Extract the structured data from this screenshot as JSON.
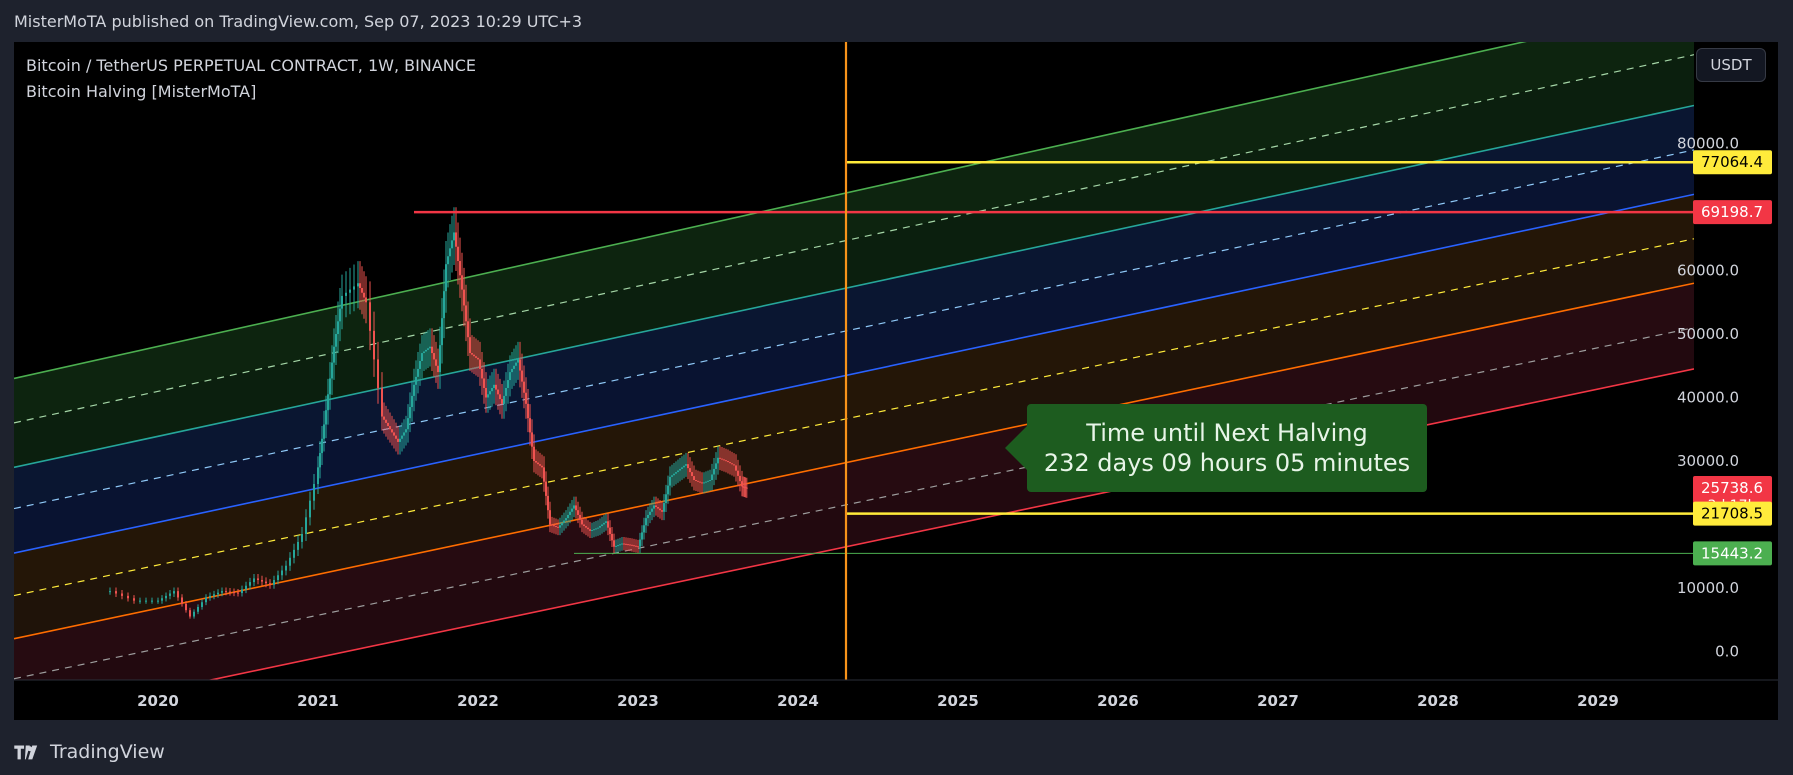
{
  "header": {
    "published_text": "MisterMoTA published on TradingView.com, Sep 07, 2023 10:29 UTC+3"
  },
  "legend": {
    "symbol_line": "Bitcoin / TetherUS PERPETUAL CONTRACT, 1W, BINANCE",
    "indicator_line": "Bitcoin Halving [MisterMoTA]"
  },
  "currency_button": "USDT",
  "callout": {
    "line1": "Time until Next Halving",
    "line2": "232 days 09 hours 05 minutes"
  },
  "footer": {
    "brand": "TradingView"
  },
  "colors": {
    "background": "#000000",
    "candle_up": "#26a69a",
    "candle_down": "#ef5350",
    "halving_line": "#f7931a",
    "target_line": "#ffeb3b",
    "ath_line": "#f23645",
    "callout_bg": "#1d5c1f"
  },
  "chart_data": {
    "type": "candlestick",
    "title": "Bitcoin / TetherUS PERPETUAL CONTRACT, 1W, BINANCE",
    "x_axis": {
      "ticks": [
        "2020",
        "2021",
        "2022",
        "2023",
        "2024",
        "2025",
        "2026",
        "2027",
        "2028",
        "2029"
      ],
      "range": [
        2019.1,
        2029.6
      ]
    },
    "y_axis": {
      "ticks": [
        0.0,
        10000.0,
        20000.0,
        30000.0,
        40000.0,
        50000.0,
        60000.0,
        70000.0,
        80000.0
      ],
      "tick_labels": [
        "0.0",
        "10000.0",
        "30000.0",
        "40000.0",
        "50000.0",
        "60000.0",
        "80000.0"
      ],
      "range": [
        -4500,
        96000
      ]
    },
    "price_tags": [
      {
        "value": 77064.4,
        "label": "77064.4",
        "color": "#ffeb3b",
        "text_color": "#000000"
      },
      {
        "value": 69198.7,
        "label": "69198.7",
        "color": "#f23645",
        "text_color": "#ffffff"
      },
      {
        "value": 25738.6,
        "label": "25738.6",
        "sub": "3d 17h",
        "color": "#f23645",
        "text_color": "#ffffff"
      },
      {
        "value": 21708.5,
        "label": "21708.5",
        "color": "#ffeb3b",
        "text_color": "#000000"
      },
      {
        "value": 15443.2,
        "label": "15443.2",
        "color": "#4caf50",
        "text_color": "#ffffff"
      }
    ],
    "horizontal_lines": [
      {
        "name": "ath",
        "value": 69198.7,
        "from": 2021.6,
        "to": 2029.6,
        "color": "#f23645"
      },
      {
        "name": "upper-target",
        "value": 77064.4,
        "from": 2024.3,
        "to": 2029.6,
        "color": "#ffeb3b"
      },
      {
        "name": "lower-target",
        "value": 21708.5,
        "from": 2024.3,
        "to": 2029.6,
        "color": "#ffeb3b"
      },
      {
        "name": "cycle-low",
        "value": 15443.2,
        "from": 2022.6,
        "to": 2029.6,
        "color": "#4caf50"
      }
    ],
    "vertical_lines": [
      {
        "name": "next-halving",
        "x": 2024.3,
        "color": "#f7931a"
      }
    ],
    "channel_lines": [
      {
        "name": "green-top",
        "y_start": 43000,
        "y_end": 102000,
        "color": "#4caf50",
        "dash": false
      },
      {
        "name": "green-mid",
        "y_start": 36000,
        "y_end": 94000,
        "color": "#a5d6a7",
        "dash": true
      },
      {
        "name": "teal",
        "y_start": 29000,
        "y_end": 86000,
        "color": "#26a69a",
        "dash": false
      },
      {
        "name": "blue-mid",
        "y_start": 22500,
        "y_end": 79000,
        "color": "#90caf9",
        "dash": true
      },
      {
        "name": "blue-orange",
        "y_start": 15500,
        "y_end": 72000,
        "color": "#2962ff",
        "dash": false
      },
      {
        "name": "yellow-mid",
        "y_start": 8800,
        "y_end": 65000,
        "color": "#ffeb3b",
        "dash": true
      },
      {
        "name": "orange",
        "y_start": 2000,
        "y_end": 58000,
        "color": "#ff6d00",
        "dash": false
      },
      {
        "name": "grey-mid",
        "y_start": -4300,
        "y_end": 51000,
        "color": "#9e9e9e",
        "dash": true
      },
      {
        "name": "red-bottom",
        "y_start": -11000,
        "y_end": 44500,
        "color": "#f23645",
        "dash": false
      }
    ],
    "series": [
      {
        "name": "BTCUSDT.P",
        "points": [
          [
            2019.7,
            9500
          ],
          [
            2019.85,
            8000
          ],
          [
            2020.0,
            8000
          ],
          [
            2020.1,
            9500
          ],
          [
            2020.2,
            5500
          ],
          [
            2020.3,
            8500
          ],
          [
            2020.4,
            9500
          ],
          [
            2020.5,
            9200
          ],
          [
            2020.6,
            11500
          ],
          [
            2020.7,
            10500
          ],
          [
            2020.8,
            13500
          ],
          [
            2020.9,
            18500
          ],
          [
            2021.0,
            29000
          ],
          [
            2021.05,
            38000
          ],
          [
            2021.1,
            48000
          ],
          [
            2021.15,
            56000
          ],
          [
            2021.25,
            58000
          ],
          [
            2021.3,
            55000
          ],
          [
            2021.4,
            37000
          ],
          [
            2021.45,
            35000
          ],
          [
            2021.5,
            33000
          ],
          [
            2021.55,
            35000
          ],
          [
            2021.6,
            42000
          ],
          [
            2021.65,
            47000
          ],
          [
            2021.7,
            48000
          ],
          [
            2021.75,
            44000
          ],
          [
            2021.8,
            61000
          ],
          [
            2021.85,
            66000
          ],
          [
            2021.9,
            57000
          ],
          [
            2021.95,
            47000
          ],
          [
            2022.0,
            46000
          ],
          [
            2022.05,
            40000
          ],
          [
            2022.1,
            42000
          ],
          [
            2022.15,
            39000
          ],
          [
            2022.2,
            44000
          ],
          [
            2022.25,
            46000
          ],
          [
            2022.3,
            39000
          ],
          [
            2022.35,
            30000
          ],
          [
            2022.4,
            29000
          ],
          [
            2022.45,
            20000
          ],
          [
            2022.5,
            19500
          ],
          [
            2022.55,
            21000
          ],
          [
            2022.6,
            23000
          ],
          [
            2022.65,
            20000
          ],
          [
            2022.7,
            19000
          ],
          [
            2022.75,
            19500
          ],
          [
            2022.8,
            20500
          ],
          [
            2022.85,
            16500
          ],
          [
            2022.9,
            17000
          ],
          [
            2022.95,
            16800
          ],
          [
            2023.0,
            16500
          ],
          [
            2023.05,
            21000
          ],
          [
            2023.1,
            23000
          ],
          [
            2023.15,
            22000
          ],
          [
            2023.2,
            27500
          ],
          [
            2023.25,
            28500
          ],
          [
            2023.3,
            29500
          ],
          [
            2023.35,
            27000
          ],
          [
            2023.4,
            26500
          ],
          [
            2023.45,
            27000
          ],
          [
            2023.5,
            30500
          ],
          [
            2023.55,
            30000
          ],
          [
            2023.6,
            29300
          ],
          [
            2023.65,
            26000
          ],
          [
            2023.68,
            25738.6
          ]
        ]
      }
    ]
  }
}
